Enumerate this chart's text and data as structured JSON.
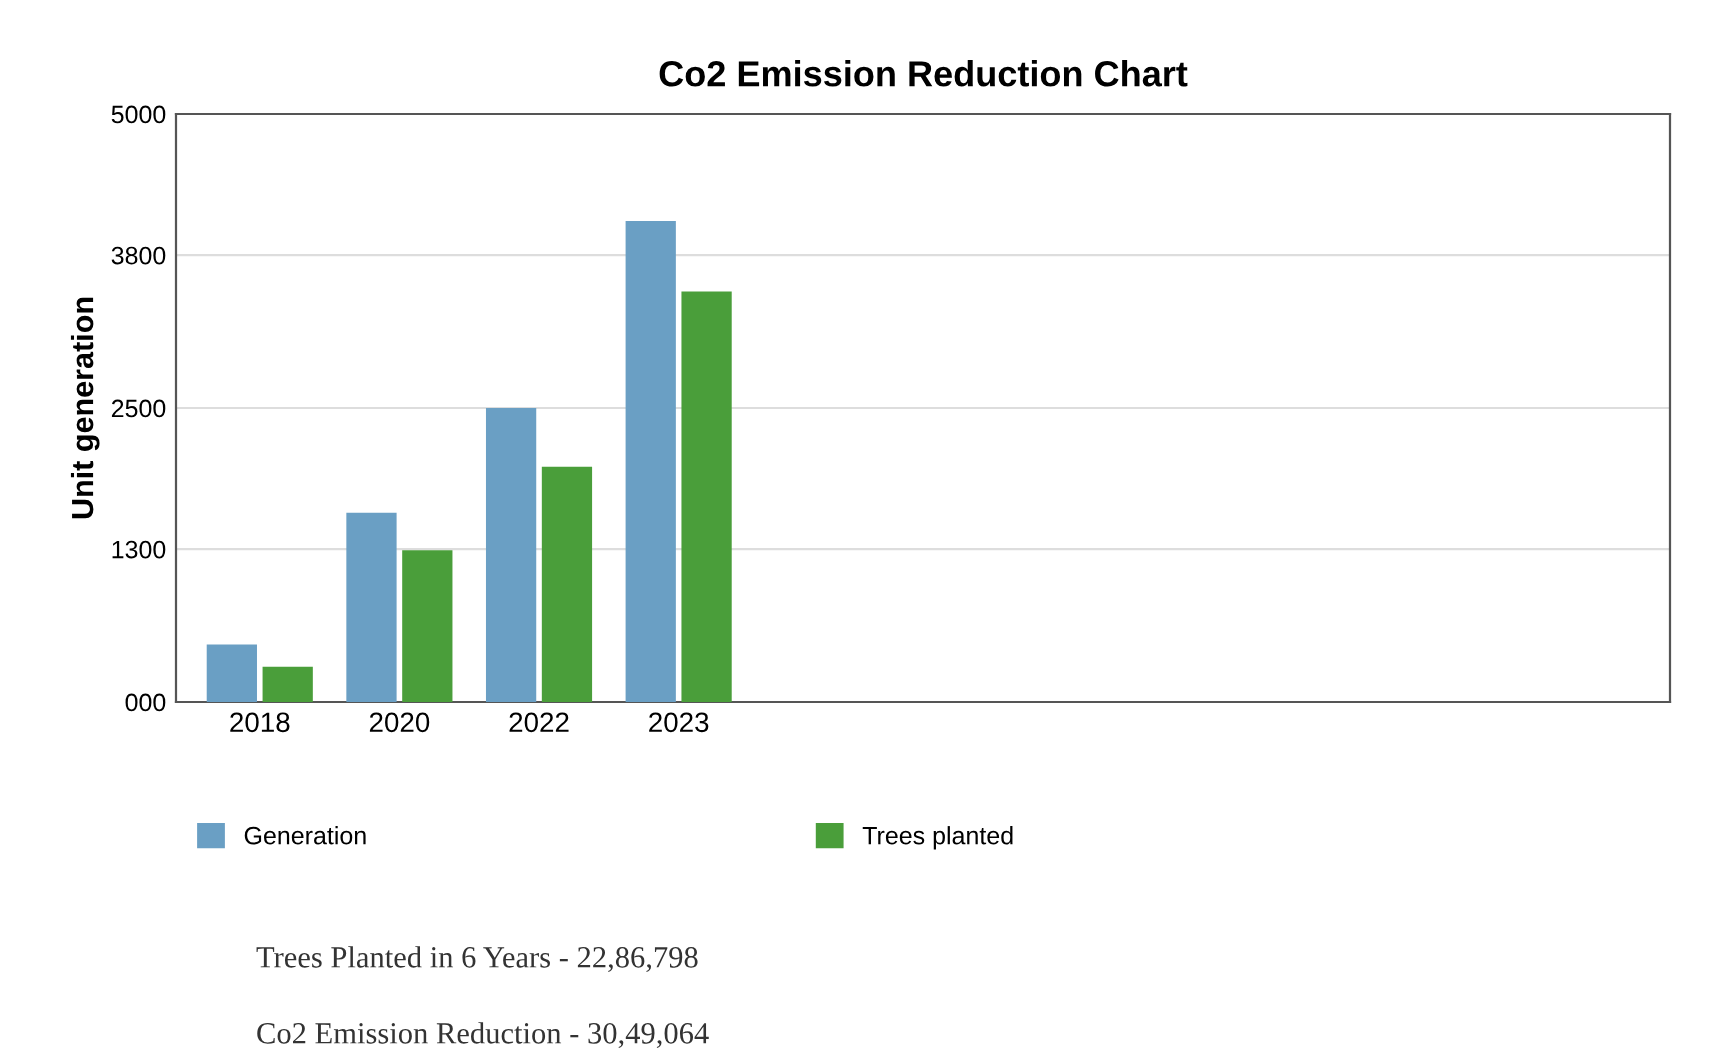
{
  "chart_data": {
    "type": "bar",
    "title": "Co2 Emission Reduction Chart",
    "ylabel": "Unit generation",
    "categories": [
      "2018",
      "2020",
      "2022",
      "2023"
    ],
    "series": [
      {
        "name": "Generation",
        "color": "#6a9fc4",
        "values": [
          490,
          1610,
          2500,
          4090
        ]
      },
      {
        "name": "Trees planted",
        "color": "#4a9e3a",
        "values": [
          300,
          1290,
          2000,
          3490
        ]
      }
    ],
    "ylim": [
      0,
      5000
    ],
    "yticks": [
      {
        "value": 0,
        "label": "000"
      },
      1300,
      2500,
      3800,
      5000
    ],
    "grid": "y",
    "legend": "bottom",
    "annotations": [
      "Trees Planted in 6 Years - 22,86,798",
      "Co2 Emission Reduction - 30,49,064"
    ]
  }
}
